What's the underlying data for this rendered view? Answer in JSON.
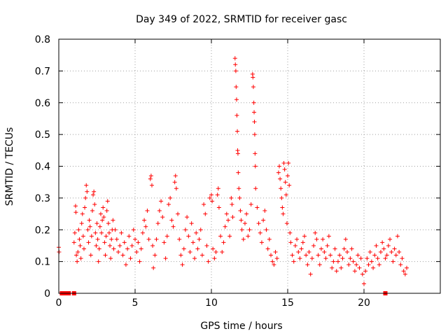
{
  "chart_data": {
    "type": "scatter",
    "title": "Day 349 of 2022, SRMTID for receiver gasc",
    "xlabel": "GPS time / hours",
    "ylabel": "SRMTID / TECUs",
    "xlim": [
      0,
      25
    ],
    "ylim": [
      0,
      0.8
    ],
    "x_ticks": [
      {
        "value": 0,
        "label": "0"
      },
      {
        "value": 5,
        "label": "5"
      },
      {
        "value": 10,
        "label": "10"
      },
      {
        "value": 15,
        "label": "15"
      },
      {
        "value": 20,
        "label": "20"
      }
    ],
    "y_ticks": [
      {
        "value": 0,
        "label": "0"
      },
      {
        "value": 0.1,
        "label": "0.1"
      },
      {
        "value": 0.2,
        "label": "0.2"
      },
      {
        "value": 0.3,
        "label": "0.3"
      },
      {
        "value": 0.4,
        "label": "0.4"
      },
      {
        "value": 0.5,
        "label": "0.5"
      },
      {
        "value": 0.6,
        "label": "0.6"
      },
      {
        "value": 0.7,
        "label": "0.7"
      },
      {
        "value": 0.8,
        "label": "0.8"
      }
    ],
    "grid": true,
    "marker_color": "#ff0000",
    "series": [
      {
        "name": "SRMTID",
        "marker": "plus",
        "points": [
          [
            0.0,
            0.145
          ],
          [
            0.02,
            0.13
          ],
          [
            1.0,
            0.16
          ],
          [
            1.05,
            0.19
          ],
          [
            1.1,
            0.275
          ],
          [
            1.12,
            0.255
          ],
          [
            1.15,
            0.12
          ],
          [
            1.2,
            0.1
          ],
          [
            1.25,
            0.13
          ],
          [
            1.3,
            0.2
          ],
          [
            1.35,
            0.17
          ],
          [
            1.4,
            0.15
          ],
          [
            1.45,
            0.11
          ],
          [
            1.5,
            0.22
          ],
          [
            1.55,
            0.25
          ],
          [
            1.6,
            0.18
          ],
          [
            1.65,
            0.14
          ],
          [
            1.7,
            0.27
          ],
          [
            1.75,
            0.3
          ],
          [
            1.8,
            0.34
          ],
          [
            1.85,
            0.32
          ],
          [
            1.9,
            0.2
          ],
          [
            1.95,
            0.16
          ],
          [
            2.0,
            0.23
          ],
          [
            2.05,
            0.21
          ],
          [
            2.1,
            0.12
          ],
          [
            2.15,
            0.18
          ],
          [
            2.2,
            0.26
          ],
          [
            2.25,
            0.31
          ],
          [
            2.3,
            0.32
          ],
          [
            2.35,
            0.28
          ],
          [
            2.4,
            0.19
          ],
          [
            2.45,
            0.15
          ],
          [
            2.5,
            0.22
          ],
          [
            2.55,
            0.17
          ],
          [
            2.6,
            0.1
          ],
          [
            2.65,
            0.14
          ],
          [
            2.7,
            0.21
          ],
          [
            2.75,
            0.25
          ],
          [
            2.8,
            0.19
          ],
          [
            2.85,
            0.23
          ],
          [
            2.9,
            0.27
          ],
          [
            2.95,
            0.24
          ],
          [
            3.0,
            0.16
          ],
          [
            3.05,
            0.12
          ],
          [
            3.1,
            0.18
          ],
          [
            3.15,
            0.26
          ],
          [
            3.2,
            0.29
          ],
          [
            3.25,
            0.22
          ],
          [
            3.3,
            0.19
          ],
          [
            3.35,
            0.15
          ],
          [
            3.4,
            0.11
          ],
          [
            3.45,
            0.17
          ],
          [
            3.5,
            0.2
          ],
          [
            3.55,
            0.23
          ],
          [
            3.6,
            0.14
          ],
          [
            3.7,
            0.2
          ],
          [
            3.8,
            0.17
          ],
          [
            3.9,
            0.13
          ],
          [
            4.0,
            0.15
          ],
          [
            4.1,
            0.19
          ],
          [
            4.2,
            0.12
          ],
          [
            4.3,
            0.16
          ],
          [
            4.4,
            0.09
          ],
          [
            4.5,
            0.14
          ],
          [
            4.6,
            0.18
          ],
          [
            4.7,
            0.11
          ],
          [
            4.8,
            0.15
          ],
          [
            4.9,
            0.2
          ],
          [
            5.0,
            0.17
          ],
          [
            5.1,
            0.13
          ],
          [
            5.2,
            0.16
          ],
          [
            5.3,
            0.1
          ],
          [
            5.4,
            0.14
          ],
          [
            5.5,
            0.19
          ],
          [
            5.6,
            0.23
          ],
          [
            5.7,
            0.21
          ],
          [
            5.8,
            0.26
          ],
          [
            5.9,
            0.17
          ],
          [
            6.0,
            0.36
          ],
          [
            6.05,
            0.37
          ],
          [
            6.1,
            0.34
          ],
          [
            6.15,
            0.15
          ],
          [
            6.2,
            0.08
          ],
          [
            6.3,
            0.12
          ],
          [
            6.4,
            0.17
          ],
          [
            6.5,
            0.22
          ],
          [
            6.6,
            0.26
          ],
          [
            6.7,
            0.29
          ],
          [
            6.8,
            0.24
          ],
          [
            6.9,
            0.16
          ],
          [
            7.0,
            0.11
          ],
          [
            7.1,
            0.18
          ],
          [
            7.2,
            0.28
          ],
          [
            7.3,
            0.3
          ],
          [
            7.4,
            0.23
          ],
          [
            7.5,
            0.21
          ],
          [
            7.6,
            0.35
          ],
          [
            7.65,
            0.37
          ],
          [
            7.7,
            0.33
          ],
          [
            7.8,
            0.25
          ],
          [
            7.9,
            0.17
          ],
          [
            8.0,
            0.12
          ],
          [
            8.1,
            0.09
          ],
          [
            8.2,
            0.14
          ],
          [
            8.3,
            0.2
          ],
          [
            8.4,
            0.24
          ],
          [
            8.5,
            0.18
          ],
          [
            8.6,
            0.13
          ],
          [
            8.7,
            0.22
          ],
          [
            8.8,
            0.16
          ],
          [
            8.9,
            0.11
          ],
          [
            9.0,
            0.19
          ],
          [
            9.1,
            0.14
          ],
          [
            9.2,
            0.17
          ],
          [
            9.3,
            0.2
          ],
          [
            9.4,
            0.12
          ],
          [
            9.5,
            0.28
          ],
          [
            9.6,
            0.25
          ],
          [
            9.7,
            0.15
          ],
          [
            9.8,
            0.1
          ],
          [
            9.9,
            0.3
          ],
          [
            10.0,
            0.31
          ],
          [
            10.05,
            0.29
          ],
          [
            10.1,
            0.14
          ],
          [
            10.2,
            0.11
          ],
          [
            10.3,
            0.13
          ],
          [
            10.4,
            0.31
          ],
          [
            10.45,
            0.33
          ],
          [
            10.5,
            0.27
          ],
          [
            10.6,
            0.18
          ],
          [
            10.7,
            0.13
          ],
          [
            10.8,
            0.16
          ],
          [
            10.9,
            0.21
          ],
          [
            11.0,
            0.25
          ],
          [
            11.1,
            0.23
          ],
          [
            11.2,
            0.18
          ],
          [
            11.3,
            0.3
          ],
          [
            11.35,
            0.28
          ],
          [
            11.4,
            0.24
          ],
          [
            11.55,
            0.74
          ],
          [
            11.57,
            0.72
          ],
          [
            11.6,
            0.7
          ],
          [
            11.62,
            0.65
          ],
          [
            11.65,
            0.61
          ],
          [
            11.67,
            0.56
          ],
          [
            11.7,
            0.51
          ],
          [
            11.72,
            0.45
          ],
          [
            11.74,
            0.44
          ],
          [
            11.76,
            0.38
          ],
          [
            11.8,
            0.33
          ],
          [
            11.85,
            0.3
          ],
          [
            11.9,
            0.26
          ],
          [
            11.95,
            0.23
          ],
          [
            12.0,
            0.2
          ],
          [
            12.1,
            0.17
          ],
          [
            12.2,
            0.22
          ],
          [
            12.3,
            0.25
          ],
          [
            12.4,
            0.18
          ],
          [
            12.5,
            0.2
          ],
          [
            12.6,
            0.28
          ],
          [
            12.7,
            0.69
          ],
          [
            12.72,
            0.68
          ],
          [
            12.75,
            0.65
          ],
          [
            12.78,
            0.6
          ],
          [
            12.8,
            0.57
          ],
          [
            12.82,
            0.54
          ],
          [
            12.84,
            0.5
          ],
          [
            12.86,
            0.44
          ],
          [
            12.88,
            0.4
          ],
          [
            12.9,
            0.33
          ],
          [
            13.0,
            0.27
          ],
          [
            13.1,
            0.22
          ],
          [
            13.2,
            0.19
          ],
          [
            13.3,
            0.16
          ],
          [
            13.4,
            0.23
          ],
          [
            13.5,
            0.26
          ],
          [
            13.6,
            0.2
          ],
          [
            13.7,
            0.14
          ],
          [
            13.8,
            0.17
          ],
          [
            13.9,
            0.12
          ],
          [
            14.0,
            0.1
          ],
          [
            14.1,
            0.09
          ],
          [
            14.2,
            0.13
          ],
          [
            14.3,
            0.11
          ],
          [
            14.4,
            0.38
          ],
          [
            14.45,
            0.4
          ],
          [
            14.5,
            0.36
          ],
          [
            14.55,
            0.33
          ],
          [
            14.6,
            0.3
          ],
          [
            14.65,
            0.27
          ],
          [
            14.7,
            0.25
          ],
          [
            14.75,
            0.41
          ],
          [
            14.8,
            0.39
          ],
          [
            14.85,
            0.35
          ],
          [
            14.9,
            0.31
          ],
          [
            14.95,
            0.22
          ],
          [
            15.0,
            0.37
          ],
          [
            15.05,
            0.41
          ],
          [
            15.1,
            0.34
          ],
          [
            15.15,
            0.19
          ],
          [
            15.2,
            0.16
          ],
          [
            15.3,
            0.12
          ],
          [
            15.4,
            0.1
          ],
          [
            15.5,
            0.15
          ],
          [
            15.6,
            0.17
          ],
          [
            15.7,
            0.13
          ],
          [
            15.8,
            0.11
          ],
          [
            15.9,
            0.14
          ],
          [
            16.0,
            0.16
          ],
          [
            16.1,
            0.18
          ],
          [
            16.2,
            0.12
          ],
          [
            16.3,
            0.09
          ],
          [
            16.4,
            0.13
          ],
          [
            16.5,
            0.06
          ],
          [
            16.6,
            0.11
          ],
          [
            16.7,
            0.15
          ],
          [
            16.8,
            0.19
          ],
          [
            16.9,
            0.17
          ],
          [
            17.0,
            0.12
          ],
          [
            17.1,
            0.09
          ],
          [
            17.2,
            0.14
          ],
          [
            17.3,
            0.17
          ],
          [
            17.4,
            0.13
          ],
          [
            17.5,
            0.11
          ],
          [
            17.6,
            0.15
          ],
          [
            17.7,
            0.18
          ],
          [
            17.8,
            0.12
          ],
          [
            17.9,
            0.08
          ],
          [
            18.0,
            0.1
          ],
          [
            18.1,
            0.14
          ],
          [
            18.2,
            0.07
          ],
          [
            18.3,
            0.1
          ],
          [
            18.4,
            0.12
          ],
          [
            18.5,
            0.08
          ],
          [
            18.6,
            0.11
          ],
          [
            18.7,
            0.14
          ],
          [
            18.8,
            0.17
          ],
          [
            18.9,
            0.13
          ],
          [
            19.0,
            0.09
          ],
          [
            19.1,
            0.11
          ],
          [
            19.2,
            0.14
          ],
          [
            19.3,
            0.1
          ],
          [
            19.4,
            0.07
          ],
          [
            19.5,
            0.09
          ],
          [
            19.6,
            0.12
          ],
          [
            19.7,
            0.08
          ],
          [
            19.8,
            0.11
          ],
          [
            19.9,
            0.06
          ],
          [
            20.0,
            0.03
          ],
          [
            20.1,
            0.07
          ],
          [
            20.2,
            0.11
          ],
          [
            20.3,
            0.09
          ],
          [
            20.4,
            0.13
          ],
          [
            20.5,
            0.1
          ],
          [
            20.6,
            0.08
          ],
          [
            20.7,
            0.12
          ],
          [
            20.8,
            0.15
          ],
          [
            20.9,
            0.11
          ],
          [
            21.0,
            0.09
          ],
          [
            21.1,
            0.13
          ],
          [
            21.2,
            0.16
          ],
          [
            21.3,
            0.14
          ],
          [
            21.4,
            0.11
          ],
          [
            21.5,
            0.12
          ],
          [
            21.6,
            0.15
          ],
          [
            21.7,
            0.17
          ],
          [
            21.8,
            0.13
          ],
          [
            21.9,
            0.1
          ],
          [
            22.0,
            0.14
          ],
          [
            22.1,
            0.12
          ],
          [
            22.2,
            0.18
          ],
          [
            22.3,
            0.13
          ],
          [
            22.4,
            0.09
          ],
          [
            22.5,
            0.11
          ],
          [
            22.6,
            0.07
          ],
          [
            22.7,
            0.06
          ],
          [
            22.8,
            0.08
          ]
        ]
      },
      {
        "name": "zero-markers",
        "marker": "square",
        "points": [
          [
            0.2,
            0
          ],
          [
            0.35,
            0
          ],
          [
            0.5,
            0
          ],
          [
            0.65,
            0
          ],
          [
            1.0,
            0
          ],
          [
            21.4,
            0
          ]
        ]
      }
    ]
  }
}
